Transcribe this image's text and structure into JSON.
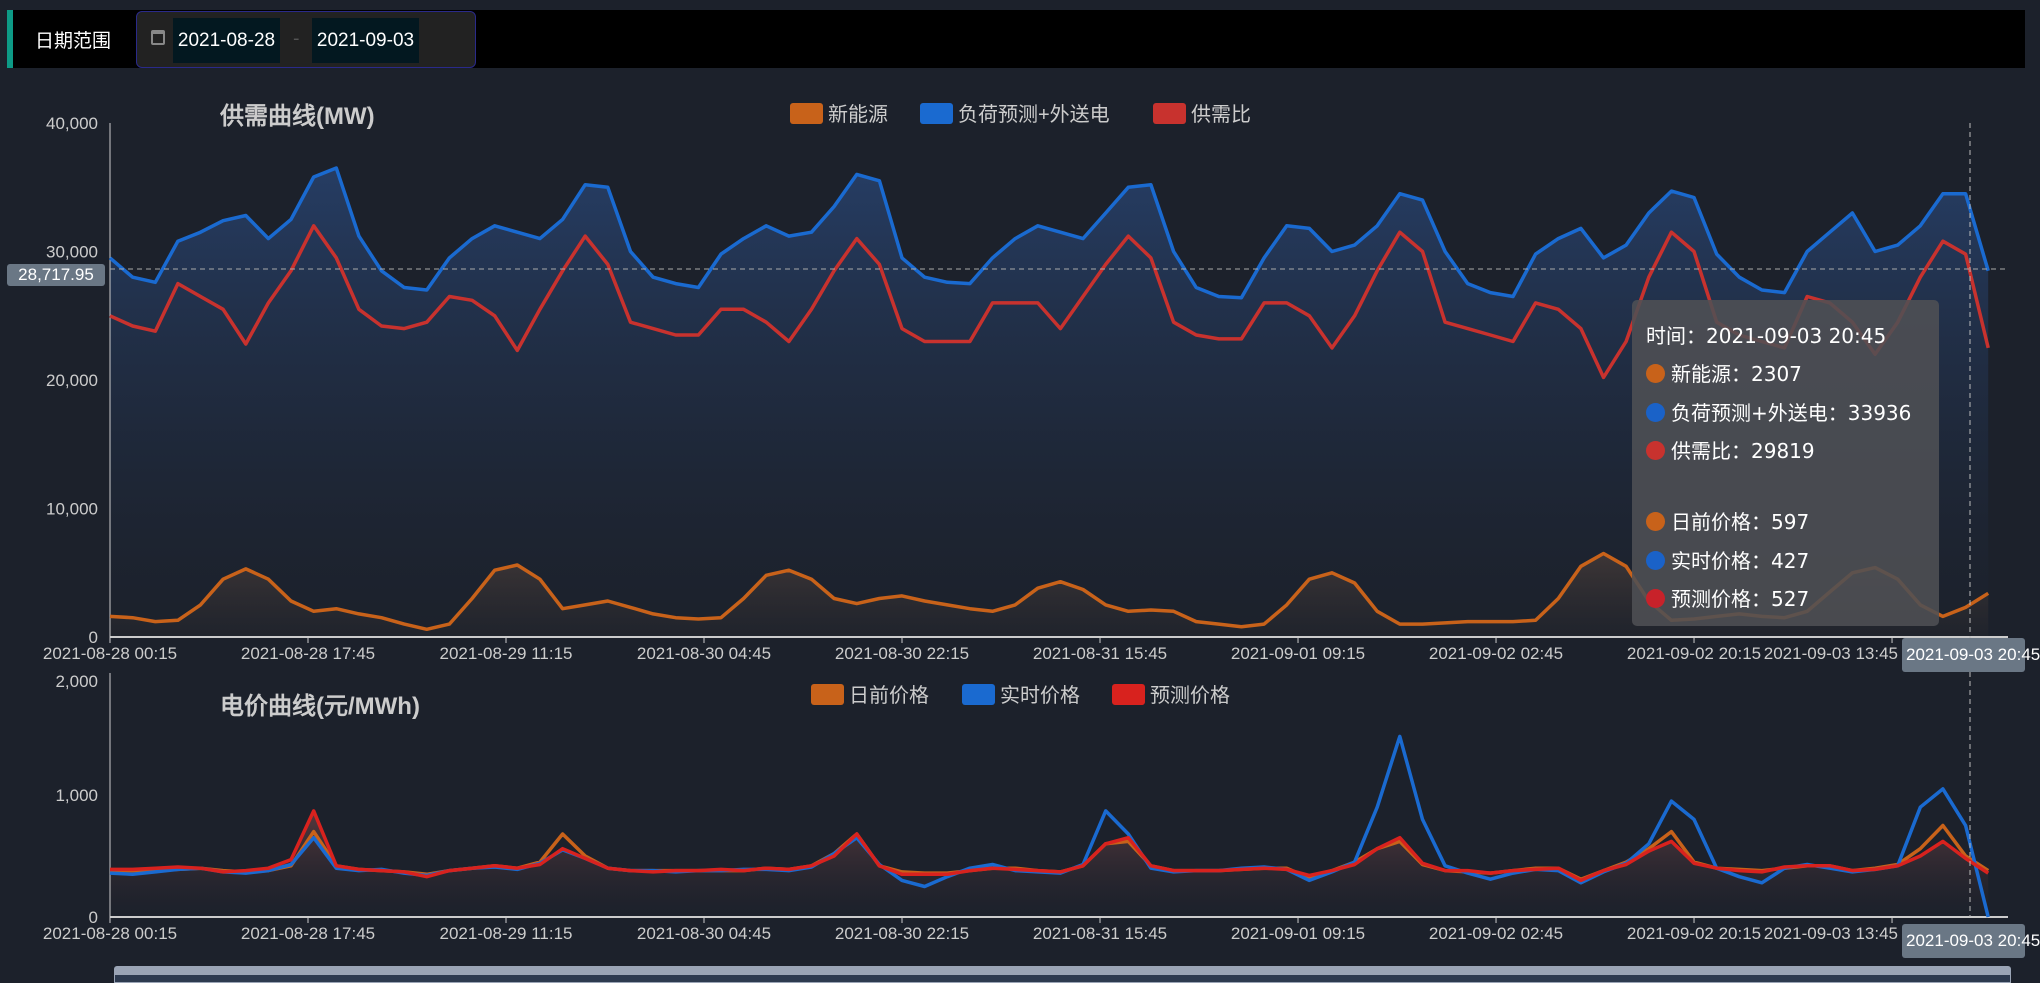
{
  "filter": {
    "label": "日期范围",
    "start_date": "2021-08-28",
    "end_date": "2021-09-03",
    "separator": "-",
    "icon": "calendar-icon"
  },
  "tooltip": {
    "time": "时间：2021-09-03 20:45",
    "rows1": [
      {
        "label": "新能源：2307",
        "color": "#c8621a"
      },
      {
        "label": "负荷预测+外送电：33936",
        "color": "#1a62c8"
      },
      {
        "label": "供需比：29819",
        "color": "#c8322e"
      }
    ],
    "rows2": [
      {
        "label": "日前价格：597",
        "color": "#c8621a"
      },
      {
        "label": "实时价格：427",
        "color": "#1a62c8"
      },
      {
        "label": "预测价格：527",
        "color": "#c8222a"
      }
    ]
  },
  "axis_pointer": {
    "y_value": "28,717.95",
    "x_value": "2021-09-03 20:45"
  },
  "chart_data": [
    {
      "type": "area",
      "title": "供需曲线(MW)",
      "x_range": [
        "2021-08-28 00:15",
        "2021-09-03 23:45"
      ],
      "sample_interval": "2h",
      "x_ticks": [
        "2021-08-28 00:15",
        "2021-08-28 17:45",
        "2021-08-29 11:15",
        "2021-08-30 04:45",
        "2021-08-30 22:15",
        "2021-08-31 15:45",
        "2021-09-01 09:15",
        "2021-09-02 02:45",
        "2021-09-02 20:15",
        "2021-09-03 13:45"
      ],
      "y_ticks": [
        "0",
        "10,000",
        "20,000",
        "30,000",
        "40,000"
      ],
      "ylim": [
        0,
        40000
      ],
      "legend_position": "top-center",
      "series": [
        {
          "name": "新能源",
          "color": "#c8621a",
          "values": [
            1.6,
            1.5,
            1.2,
            1.3,
            2.5,
            4.5,
            5.3,
            4.5,
            2.8,
            2.0,
            2.2,
            1.8,
            1.5,
            1.0,
            0.6,
            1.0,
            3.0,
            5.2,
            5.6,
            4.5,
            2.2,
            2.5,
            2.8,
            2.3,
            1.8,
            1.5,
            1.4,
            1.5,
            3.0,
            4.8,
            5.2,
            4.5,
            3.0,
            2.6,
            3.0,
            3.2,
            2.8,
            2.5,
            2.2,
            2.0,
            2.5,
            3.8,
            4.3,
            3.7,
            2.5,
            2.0,
            2.1,
            2.0,
            1.2,
            1.0,
            0.8,
            1.0,
            2.5,
            4.5,
            5.0,
            4.2,
            2.0,
            1.0,
            1.0,
            1.1,
            1.2,
            1.2,
            1.2,
            1.3,
            3.0,
            5.5,
            6.5,
            5.5,
            2.8,
            1.3,
            1.4,
            1.6,
            1.8,
            1.6,
            1.5,
            2.0,
            3.5,
            5.0,
            5.4,
            4.5,
            2.5,
            1.6,
            2.3,
            3.4
          ],
          "unit_multiplier": 1000
        },
        {
          "name": "负荷预测+外送电",
          "color": "#1a6ad0",
          "values": [
            29.5,
            28.0,
            27.6,
            30.8,
            31.5,
            32.4,
            32.8,
            31.0,
            32.5,
            35.8,
            36.5,
            31.2,
            28.5,
            27.2,
            27.0,
            29.5,
            31.0,
            32.0,
            31.5,
            31.0,
            32.5,
            35.2,
            35.0,
            30.0,
            28.0,
            27.5,
            27.2,
            29.8,
            31.0,
            32.0,
            31.2,
            31.5,
            33.5,
            36.0,
            35.5,
            29.5,
            28.0,
            27.6,
            27.5,
            29.5,
            31.0,
            32.0,
            31.5,
            31.0,
            33.0,
            35.0,
            35.2,
            30.0,
            27.2,
            26.5,
            26.4,
            29.5,
            32.0,
            31.8,
            30.0,
            30.5,
            32.0,
            34.5,
            34.0,
            30.0,
            27.5,
            26.8,
            26.5,
            29.8,
            31.0,
            31.8,
            29.5,
            30.5,
            33.0,
            34.7,
            34.2,
            29.8,
            28.0,
            27.0,
            26.8,
            30.0,
            31.5,
            33.0,
            30.0,
            30.5,
            32.0,
            34.5,
            34.5,
            28.5
          ],
          "unit_multiplier": 1000
        },
        {
          "name": "供需比",
          "color": "#c8322e",
          "values": [
            25.0,
            24.2,
            23.8,
            27.5,
            26.5,
            25.5,
            22.8,
            26.0,
            28.5,
            32.0,
            29.5,
            25.5,
            24.2,
            24.0,
            24.5,
            26.5,
            26.2,
            25.0,
            22.3,
            25.5,
            28.5,
            31.2,
            29.0,
            24.5,
            24.0,
            23.5,
            23.5,
            25.5,
            25.5,
            24.5,
            23.0,
            25.5,
            28.5,
            31.0,
            29.0,
            24.0,
            23.0,
            23.0,
            23.0,
            26.0,
            26.0,
            26.0,
            24.0,
            26.5,
            29.0,
            31.2,
            29.5,
            24.5,
            23.5,
            23.2,
            23.2,
            26.0,
            26.0,
            25.0,
            22.5,
            25.0,
            28.5,
            31.5,
            30.0,
            24.5,
            24.0,
            23.5,
            23.0,
            26.0,
            25.5,
            24.0,
            20.2,
            23.0,
            28.0,
            31.5,
            30.0,
            24.5,
            23.5,
            23.0,
            22.5,
            26.5,
            26.0,
            24.5,
            22.0,
            24.5,
            28.0,
            30.8,
            29.8,
            22.5
          ],
          "unit_multiplier": 1000
        }
      ]
    },
    {
      "type": "area",
      "title": "电价曲线(元/MWh)",
      "x_range": [
        "2021-08-28 00:15",
        "2021-09-03 23:45"
      ],
      "sample_interval": "2h",
      "x_ticks": [
        "2021-08-28 00:15",
        "2021-08-28 17:45",
        "2021-08-29 11:15",
        "2021-08-30 04:45",
        "2021-08-30 22:15",
        "2021-08-31 15:45",
        "2021-09-01 09:15",
        "2021-09-02 02:45",
        "2021-09-02 20:15",
        "2021-09-03 13:45"
      ],
      "y_ticks": [
        "0",
        "1,000",
        "2,000"
      ],
      "ylim": [
        0,
        2000
      ],
      "legend_position": "top-center",
      "series": [
        {
          "name": "日前价格",
          "color": "#c8621a",
          "values": [
            380,
            380,
            380,
            390,
            400,
            380,
            370,
            380,
            420,
            700,
            420,
            390,
            380,
            370,
            350,
            380,
            400,
            420,
            400,
            450,
            680,
            500,
            400,
            380,
            380,
            380,
            380,
            380,
            380,
            400,
            390,
            420,
            520,
            680,
            420,
            370,
            360,
            360,
            380,
            400,
            400,
            380,
            370,
            420,
            600,
            620,
            420,
            380,
            380,
            380,
            390,
            400,
            400,
            320,
            380,
            450,
            560,
            620,
            430,
            380,
            370,
            360,
            380,
            400,
            400,
            310,
            380,
            450,
            560,
            700,
            450,
            400,
            390,
            380,
            400,
            420,
            420,
            380,
            400,
            430,
            560,
            750,
            500,
            380
          ]
        },
        {
          "name": "实时价格",
          "color": "#1a6ad0",
          "values": [
            360,
            350,
            370,
            390,
            400,
            370,
            360,
            380,
            430,
            650,
            400,
            380,
            390,
            360,
            340,
            380,
            400,
            410,
            390,
            440,
            550,
            480,
            400,
            380,
            380,
            370,
            380,
            380,
            390,
            390,
            380,
            410,
            520,
            650,
            430,
            300,
            250,
            330,
            400,
            430,
            380,
            370,
            360,
            430,
            870,
            680,
            400,
            370,
            380,
            380,
            400,
            410,
            390,
            300,
            370,
            450,
            900,
            1480,
            800,
            420,
            360,
            310,
            360,
            390,
            380,
            280,
            370,
            440,
            600,
            950,
            800,
            400,
            330,
            280,
            400,
            430,
            400,
            370,
            390,
            420,
            900,
            1050,
            750,
            0
          ]
        },
        {
          "name": "预测价格",
          "color": "#d8221e",
          "values": [
            390,
            390,
            400,
            410,
            400,
            370,
            380,
            400,
            470,
            870,
            420,
            390,
            380,
            370,
            330,
            380,
            400,
            420,
            400,
            430,
            560,
            480,
            400,
            380,
            370,
            380,
            380,
            390,
            380,
            400,
            390,
            420,
            500,
            680,
            420,
            350,
            350,
            350,
            380,
            400,
            390,
            380,
            370,
            420,
            600,
            650,
            420,
            380,
            380,
            380,
            390,
            400,
            390,
            340,
            380,
            430,
            560,
            650,
            440,
            380,
            380,
            360,
            380,
            390,
            400,
            300,
            380,
            430,
            540,
            620,
            440,
            400,
            380,
            370,
            410,
            420,
            420,
            380,
            390,
            420,
            500,
            620,
            480,
            360
          ]
        }
      ]
    }
  ]
}
